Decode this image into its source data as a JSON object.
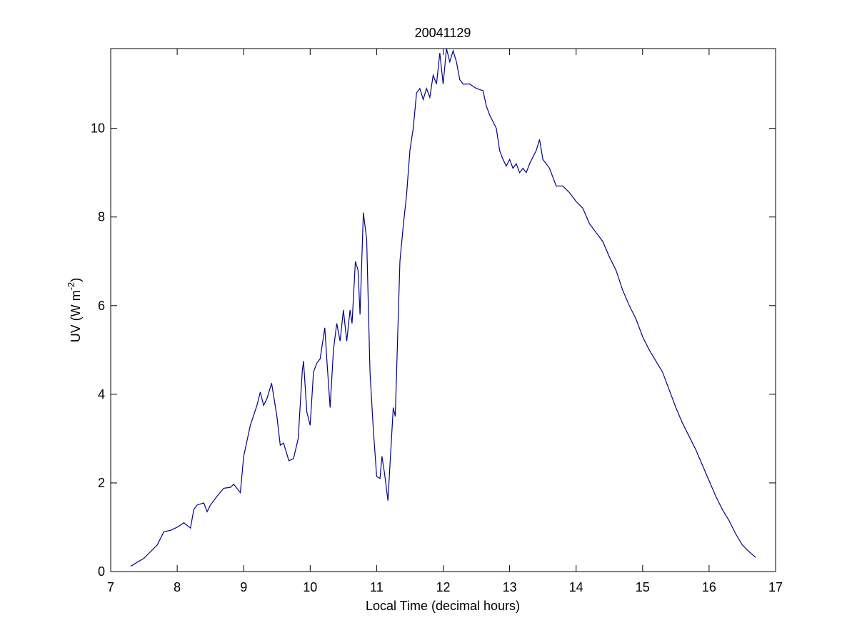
{
  "chart_data": {
    "type": "line",
    "title": "20041129",
    "xlabel": "Local Time (decimal hours)",
    "ylabel": {
      "text": "UV (W m",
      "sup": "-2",
      "end": ")"
    },
    "color": "#00008b",
    "xlim": [
      7,
      17
    ],
    "xticks": [
      7,
      8,
      9,
      10,
      11,
      12,
      13,
      14,
      15,
      16,
      17
    ],
    "ylim": [
      0,
      11.8
    ],
    "yticks": [
      0,
      2,
      4,
      6,
      8,
      10
    ],
    "grid": false,
    "x": [
      7.3,
      7.5,
      7.7,
      7.8,
      7.9,
      8.0,
      8.1,
      8.2,
      8.25,
      8.3,
      8.4,
      8.45,
      8.5,
      8.6,
      8.7,
      8.8,
      8.85,
      8.95,
      9.0,
      9.1,
      9.2,
      9.25,
      9.3,
      9.35,
      9.42,
      9.5,
      9.55,
      9.6,
      9.68,
      9.75,
      9.82,
      9.88,
      9.9,
      9.95,
      10.0,
      10.05,
      10.1,
      10.15,
      10.22,
      10.25,
      10.3,
      10.35,
      10.4,
      10.45,
      10.5,
      10.55,
      10.6,
      10.63,
      10.68,
      10.72,
      10.75,
      10.8,
      10.85,
      10.9,
      10.95,
      11.0,
      11.05,
      11.08,
      11.12,
      11.17,
      11.2,
      11.25,
      11.28,
      11.35,
      11.4,
      11.45,
      11.5,
      11.55,
      11.6,
      11.65,
      11.7,
      11.75,
      11.8,
      11.85,
      11.9,
      11.95,
      12.0,
      12.05,
      12.1,
      12.15,
      12.2,
      12.25,
      12.3,
      12.4,
      12.5,
      12.6,
      12.65,
      12.7,
      12.8,
      12.85,
      12.9,
      12.95,
      13.0,
      13.05,
      13.1,
      13.15,
      13.2,
      13.25,
      13.3,
      13.4,
      13.45,
      13.5,
      13.6,
      13.7,
      13.8,
      13.9,
      14.0,
      14.1,
      14.2,
      14.3,
      14.4,
      14.5,
      14.6,
      14.7,
      14.8,
      14.9,
      15.0,
      15.1,
      15.2,
      15.3,
      15.4,
      15.5,
      15.6,
      15.7,
      15.8,
      15.9,
      16.0,
      16.1,
      16.2,
      16.3,
      16.4,
      16.5,
      16.6,
      16.7
    ],
    "values": [
      0.12,
      0.3,
      0.6,
      0.9,
      0.93,
      1.0,
      1.1,
      0.98,
      1.4,
      1.5,
      1.55,
      1.35,
      1.5,
      1.7,
      1.88,
      1.9,
      1.97,
      1.78,
      2.6,
      3.3,
      3.75,
      4.05,
      3.75,
      3.9,
      4.25,
      3.5,
      2.85,
      2.9,
      2.5,
      2.55,
      3.0,
      4.5,
      4.75,
      3.6,
      3.3,
      4.5,
      4.7,
      4.8,
      5.5,
      4.8,
      3.7,
      5.0,
      5.6,
      5.2,
      5.9,
      5.2,
      5.9,
      5.6,
      7.0,
      6.8,
      5.8,
      8.1,
      7.5,
      4.5,
      3.2,
      2.15,
      2.1,
      2.6,
      2.2,
      1.6,
      2.4,
      3.7,
      3.5,
      7.0,
      7.8,
      8.5,
      9.5,
      10.0,
      10.8,
      10.9,
      10.65,
      10.9,
      10.7,
      11.2,
      11.0,
      11.7,
      11.0,
      11.8,
      11.5,
      11.75,
      11.5,
      11.1,
      11.0,
      11.0,
      10.9,
      10.85,
      10.5,
      10.3,
      10.0,
      9.5,
      9.3,
      9.15,
      9.3,
      9.1,
      9.2,
      9.0,
      9.1,
      9.0,
      9.2,
      9.5,
      9.75,
      9.3,
      9.1,
      8.7,
      8.7,
      8.55,
      8.35,
      8.2,
      7.85,
      7.65,
      7.45,
      7.1,
      6.8,
      6.35,
      6.0,
      5.7,
      5.3,
      5.0,
      4.75,
      4.5,
      4.1,
      3.7,
      3.35,
      3.05,
      2.75,
      2.4,
      2.05,
      1.7,
      1.4,
      1.15,
      0.85,
      0.6,
      0.45,
      0.32
    ]
  }
}
